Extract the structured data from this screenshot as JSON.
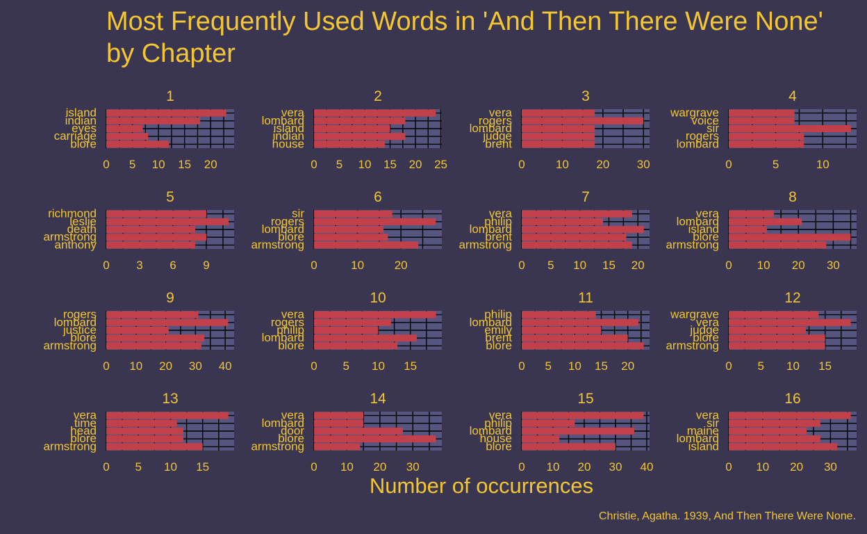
{
  "chart_data": {
    "type": "bar",
    "orientation": "horizontal",
    "title": "Most Frequently Used Words in 'And Then There Were None'\nby Chapter",
    "xlabel": "Number of occurrences",
    "caption": "Christie, Agatha. 1939, And Then There Were None.",
    "colors": {
      "background": "#3a3550",
      "panel": "#555580",
      "bar": "#c2404a",
      "text": "#f2c733",
      "grid": "#000000"
    },
    "grid": true,
    "panels": [
      {
        "title": "1",
        "categories": [
          "island",
          "indian",
          "eyes",
          "carriage",
          "blore"
        ],
        "values": [
          23,
          18,
          7,
          8,
          12
        ],
        "ticks": [
          0,
          5,
          10,
          15,
          20
        ],
        "xlim": [
          0,
          24.5
        ]
      },
      {
        "title": "2",
        "categories": [
          "vera",
          "lombard",
          "island",
          "indian",
          "house"
        ],
        "values": [
          24,
          18,
          15,
          18,
          14
        ],
        "ticks": [
          0,
          5,
          10,
          15,
          20,
          25
        ],
        "xlim": [
          0,
          25.2
        ]
      },
      {
        "title": "3",
        "categories": [
          "vera",
          "rogers",
          "lombard",
          "judge",
          "brent"
        ],
        "values": [
          18,
          30,
          18,
          18,
          18
        ],
        "ticks": [
          0,
          10,
          20,
          30
        ],
        "xlim": [
          0,
          31.5
        ]
      },
      {
        "title": "4",
        "categories": [
          "wargrave",
          "voice",
          "sir",
          "rogers",
          "lombard"
        ],
        "values": [
          7,
          7,
          13,
          8,
          8
        ],
        "ticks": [
          0,
          5,
          10
        ],
        "xlim": [
          0,
          13.6
        ]
      },
      {
        "title": "5",
        "categories": [
          "richmond",
          "leslie",
          "death",
          "armstrong",
          "anthony"
        ],
        "values": [
          9,
          11,
          8,
          9,
          8
        ],
        "ticks": [
          0,
          3,
          6,
          9
        ],
        "xlim": [
          0,
          11.5
        ]
      },
      {
        "title": "6",
        "categories": [
          "sir",
          "rogers",
          "lombard",
          "blore",
          "armstrong"
        ],
        "values": [
          18,
          28,
          16,
          17,
          24
        ],
        "ticks": [
          0,
          10,
          20
        ],
        "xlim": [
          0,
          29.4
        ]
      },
      {
        "title": "7",
        "categories": [
          "vera",
          "philip",
          "lombard",
          "brent",
          "armstrong"
        ],
        "values": [
          19,
          14,
          21,
          18,
          19
        ],
        "ticks": [
          0,
          5,
          10,
          15,
          20
        ],
        "xlim": [
          0,
          22
        ]
      },
      {
        "title": "8",
        "categories": [
          "vera",
          "lombard",
          "island",
          "blore",
          "armstrong"
        ],
        "values": [
          13,
          21,
          11,
          35,
          28
        ],
        "ticks": [
          0,
          10,
          20,
          30
        ],
        "xlim": [
          0,
          36.7
        ]
      },
      {
        "title": "9",
        "categories": [
          "rogers",
          "lombard",
          "justice",
          "blore",
          "armstrong"
        ],
        "values": [
          31,
          41,
          21,
          33,
          32
        ],
        "ticks": [
          0,
          10,
          20,
          30,
          40
        ],
        "xlim": [
          0,
          43
        ]
      },
      {
        "title": "10",
        "categories": [
          "vera",
          "rogers",
          "philip",
          "lombard",
          "blore"
        ],
        "values": [
          19,
          12,
          10,
          16,
          13
        ],
        "ticks": [
          0,
          5,
          10,
          15
        ],
        "xlim": [
          0,
          19.9
        ]
      },
      {
        "title": "11",
        "categories": [
          "philip",
          "lombard",
          "emily",
          "brent",
          "blore"
        ],
        "values": [
          14,
          22,
          15,
          20,
          23
        ],
        "ticks": [
          0,
          5,
          10,
          15,
          20
        ],
        "xlim": [
          0,
          24.1
        ]
      },
      {
        "title": "12",
        "categories": [
          "wargrave",
          "vera",
          "judge",
          "blore",
          "armstrong"
        ],
        "values": [
          14,
          19,
          12,
          15,
          15
        ],
        "ticks": [
          0,
          5,
          10,
          15
        ],
        "xlim": [
          0,
          19.9
        ]
      },
      {
        "title": "13",
        "categories": [
          "vera",
          "time",
          "head",
          "blore",
          "armstrong"
        ],
        "values": [
          19,
          11,
          12,
          12,
          15
        ],
        "ticks": [
          0,
          5,
          10,
          15
        ],
        "xlim": [
          0,
          19.9
        ]
      },
      {
        "title": "14",
        "categories": [
          "vera",
          "lombard",
          "door",
          "blore",
          "armstrong"
        ],
        "values": [
          15,
          15,
          27,
          37,
          14
        ],
        "ticks": [
          0,
          10,
          20,
          30
        ],
        "xlim": [
          0,
          38.8
        ]
      },
      {
        "title": "15",
        "categories": [
          "vera",
          "philip",
          "lombard",
          "house",
          "blore"
        ],
        "values": [
          39,
          17,
          36,
          12,
          30
        ],
        "ticks": [
          0,
          10,
          20,
          30,
          40
        ],
        "xlim": [
          0,
          40.9
        ]
      },
      {
        "title": "16",
        "categories": [
          "vera",
          "sir",
          "maine",
          "lombard",
          "island"
        ],
        "values": [
          36,
          27,
          23,
          27,
          32
        ],
        "ticks": [
          0,
          10,
          20,
          30
        ],
        "xlim": [
          0,
          37.7
        ]
      }
    ]
  }
}
